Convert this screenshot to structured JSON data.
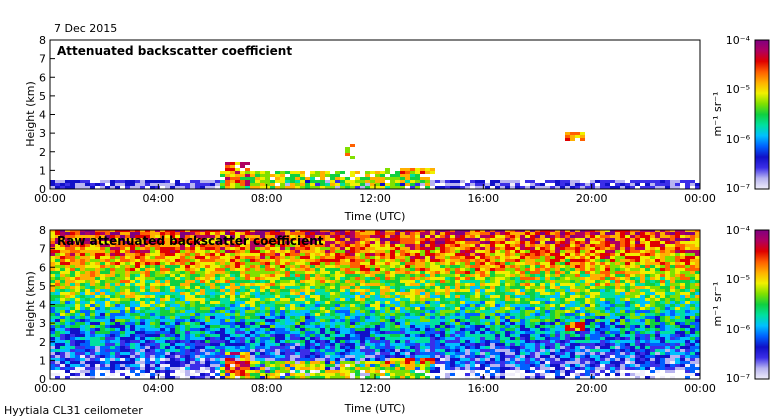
{
  "date": "7 Dec 2015",
  "instrument": "Hyytiala CL31 ceilometer",
  "colorbar": {
    "ticks": [
      "10⁻⁴",
      "10⁻⁵",
      "10⁻⁶",
      "10⁻⁷"
    ],
    "unit": "m⁻¹ sr⁻¹",
    "colors": [
      "#f0eefa",
      "#b8b4f0",
      "#3b2ee8",
      "#1010c8",
      "#0060ff",
      "#00c0ff",
      "#00e0a0",
      "#10d040",
      "#80e000",
      "#f0f000",
      "#ffb000",
      "#ff6000",
      "#e00000",
      "#b00060",
      "#800080"
    ]
  },
  "chart_data": [
    {
      "type": "heatmap",
      "title": "Attenuated backscatter coefficient",
      "xlabel": "Time (UTC)",
      "ylabel": "Height (km)",
      "xlim": [
        0,
        24
      ],
      "ylim": [
        0,
        8
      ],
      "x_tick_labels": [
        "00:00",
        "04:00",
        "08:00",
        "12:00",
        "16:00",
        "20:00",
        "00:00"
      ],
      "y_tick_labels": [
        "0",
        "1",
        "2",
        "3",
        "4",
        "5",
        "6",
        "7",
        "8"
      ],
      "color_scale": "log10 beta, 1e-7 to 1e-4 m-1 sr-1",
      "features": [
        {
          "name": "near-surface noise layer",
          "t": [
            0,
            24
          ],
          "h": [
            0,
            0.6
          ],
          "log_beta": -6.6
        },
        {
          "name": "boundary layer aerosol",
          "t": [
            6.3,
            14.0
          ],
          "h": [
            0,
            0.9
          ],
          "log_beta": -5.2
        },
        {
          "name": "low cloud",
          "t": [
            6.4,
            7.4
          ],
          "h": [
            0.2,
            1.4
          ],
          "log_beta": -4.6
        },
        {
          "name": "cloud fragments",
          "t": [
            10.9,
            11.3
          ],
          "h": [
            1.6,
            2.4
          ],
          "log_beta": -5.0
        },
        {
          "name": "cloud layer",
          "t": [
            12.4,
            14.2
          ],
          "h": [
            0.8,
            1.1
          ],
          "log_beta": -4.8
        },
        {
          "name": "elevated cloud",
          "t": [
            19.0,
            19.7
          ],
          "h": [
            2.5,
            3.1
          ],
          "log_beta": -4.7
        }
      ]
    },
    {
      "type": "heatmap",
      "title": "Raw attenuated backscatter coefficient",
      "xlabel": "Time (UTC)",
      "ylabel": "Height (km)",
      "xlim": [
        0,
        24
      ],
      "ylim": [
        0,
        8
      ],
      "x_tick_labels": [
        "00:00",
        "04:00",
        "08:00",
        "12:00",
        "16:00",
        "20:00",
        "00:00"
      ],
      "y_tick_labels": [
        "0",
        "1",
        "2",
        "3",
        "4",
        "5",
        "6",
        "7",
        "8"
      ],
      "color_scale": "log10 beta, 1e-7 to 1e-4 m-1 sr-1",
      "features": [
        {
          "name": "background noise increasing with height",
          "t": [
            0,
            24
          ],
          "h": [
            0,
            8
          ],
          "log_beta": -5.3
        },
        {
          "name": "boundary layer aerosol",
          "t": [
            6.3,
            14.0
          ],
          "h": [
            0,
            0.9
          ],
          "log_beta": -5.2
        },
        {
          "name": "low cloud",
          "t": [
            6.4,
            7.4
          ],
          "h": [
            0.2,
            1.4
          ],
          "log_beta": -4.6
        },
        {
          "name": "cloud layer",
          "t": [
            12.4,
            14.2
          ],
          "h": [
            0.8,
            1.1
          ],
          "log_beta": -4.8
        },
        {
          "name": "elevated cloud",
          "t": [
            19.0,
            19.7
          ],
          "h": [
            2.5,
            3.1
          ],
          "log_beta": -4.7
        }
      ]
    }
  ]
}
